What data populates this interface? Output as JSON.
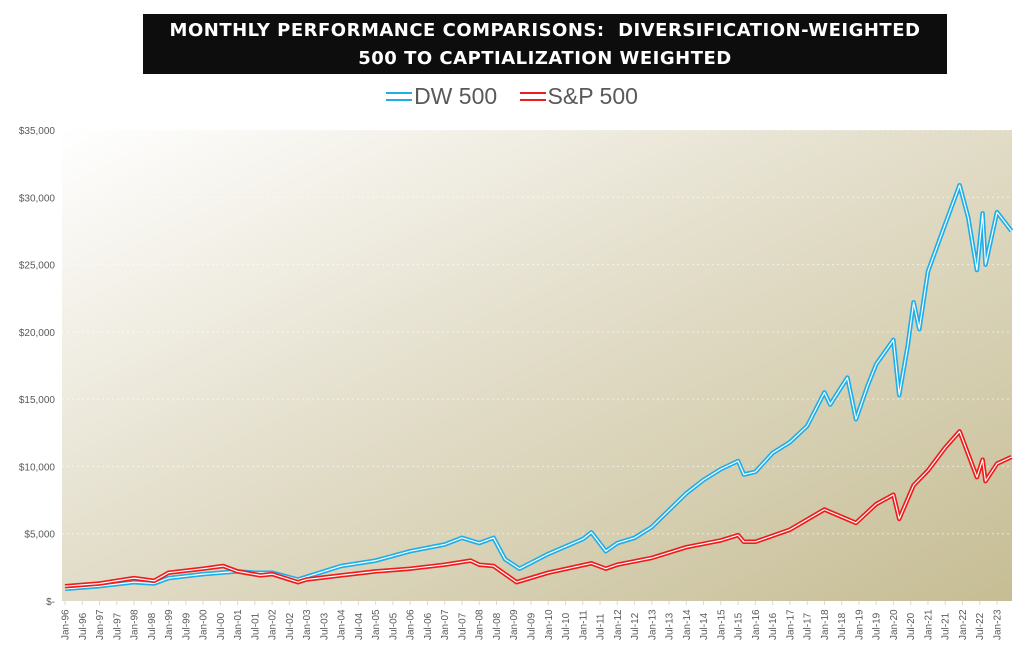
{
  "chart_data": {
    "type": "line",
    "title": [
      "MONTHLY PERFORMANCE COMPARISONS:  DIVERSIFICATION-WEIGHTED",
      "500 TO CAPTIALIZATION WEIGHTED"
    ],
    "xlabel": "",
    "ylabel": "",
    "ylim": [
      0,
      35000
    ],
    "yticks": [
      0,
      5000,
      10000,
      15000,
      20000,
      25000,
      30000,
      35000
    ],
    "ytick_labels": [
      "$-",
      "$5,000",
      "$10,000",
      "$15,000",
      "$20,000",
      "$25,000",
      "$30,000",
      "$35,000"
    ],
    "xtick_labels": [
      "Jan-96",
      "Jul-96",
      "Jan-97",
      "Jul-97",
      "Jan-98",
      "Jul-98",
      "Jan-99",
      "Jul-99",
      "Jan-00",
      "Jul-00",
      "Jan-01",
      "Jul-01",
      "Jan-02",
      "Jul-02",
      "Jan-03",
      "Jul-03",
      "Jan-04",
      "Jul-04",
      "Jan-05",
      "Jul-05",
      "Jan-06",
      "Jul-06",
      "Jan-07",
      "Jul-07",
      "Jan-08",
      "Jul-08",
      "Jan-09",
      "Jul-09",
      "Jan-10",
      "Jul-10",
      "Jan-11",
      "Jul-11",
      "Jan-12",
      "Jul-12",
      "Jan-13",
      "Jul-13",
      "Jan-14",
      "Jul-14",
      "Jan-15",
      "Jul-15",
      "Jan-16",
      "Jul-16",
      "Jan-17",
      "Jul-17",
      "Jan-18",
      "Jul-18",
      "Jan-19",
      "Jul-19",
      "Jan-20",
      "Jul-20",
      "Jan-21",
      "Jul-21",
      "Jan-22",
      "Jul-22",
      "Jan-23"
    ],
    "grid": true,
    "legend_position": "top",
    "series": [
      {
        "name": "DW 500",
        "color": "#1eaee8",
        "points": [
          [
            "1996-01",
            900
          ],
          [
            "1997-01",
            1100
          ],
          [
            "1998-01",
            1400
          ],
          [
            "1998-08",
            1300
          ],
          [
            "1999-01",
            1700
          ],
          [
            "2000-01",
            2000
          ],
          [
            "2001-01",
            2200
          ],
          [
            "2001-07",
            2100
          ],
          [
            "2002-01",
            2100
          ],
          [
            "2002-10",
            1600
          ],
          [
            "2003-01",
            1800
          ],
          [
            "2004-01",
            2600
          ],
          [
            "2005-01",
            3000
          ],
          [
            "2006-01",
            3700
          ],
          [
            "2007-01",
            4200
          ],
          [
            "2007-07",
            4700
          ],
          [
            "2008-01",
            4300
          ],
          [
            "2008-06",
            4700
          ],
          [
            "2008-10",
            3100
          ],
          [
            "2009-03",
            2400
          ],
          [
            "2010-01",
            3500
          ],
          [
            "2011-01",
            4600
          ],
          [
            "2011-04",
            5100
          ],
          [
            "2011-09",
            3700
          ],
          [
            "2012-01",
            4300
          ],
          [
            "2012-07",
            4700
          ],
          [
            "2013-01",
            5500
          ],
          [
            "2014-01",
            8000
          ],
          [
            "2014-07",
            9000
          ],
          [
            "2015-01",
            9800
          ],
          [
            "2015-07",
            10400
          ],
          [
            "2015-09",
            9400
          ],
          [
            "2016-01",
            9600
          ],
          [
            "2016-07",
            11000
          ],
          [
            "2017-01",
            11800
          ],
          [
            "2017-07",
            13000
          ],
          [
            "2018-01",
            15500
          ],
          [
            "2018-03",
            14600
          ],
          [
            "2018-09",
            16600
          ],
          [
            "2018-12",
            13500
          ],
          [
            "2019-04",
            16000
          ],
          [
            "2019-07",
            17600
          ],
          [
            "2020-01",
            19400
          ],
          [
            "2020-03",
            15300
          ],
          [
            "2020-06",
            19000
          ],
          [
            "2020-08",
            22200
          ],
          [
            "2020-10",
            20200
          ],
          [
            "2021-01",
            24500
          ],
          [
            "2021-07",
            28000
          ],
          [
            "2021-12",
            30900
          ],
          [
            "2022-03",
            28500
          ],
          [
            "2022-06",
            24600
          ],
          [
            "2022-08",
            28800
          ],
          [
            "2022-09",
            25000
          ],
          [
            "2023-01",
            28900
          ],
          [
            "2023-06",
            27500
          ]
        ]
      },
      {
        "name": "S&P 500",
        "color": "#ee1c1c",
        "points": [
          [
            "1996-01",
            1100
          ],
          [
            "1997-01",
            1300
          ],
          [
            "1998-01",
            1700
          ],
          [
            "1998-08",
            1500
          ],
          [
            "1999-01",
            2100
          ],
          [
            "2000-01",
            2400
          ],
          [
            "2000-08",
            2600
          ],
          [
            "2001-01",
            2200
          ],
          [
            "2001-09",
            1900
          ],
          [
            "2002-01",
            2000
          ],
          [
            "2002-10",
            1400
          ],
          [
            "2003-01",
            1600
          ],
          [
            "2004-01",
            1900
          ],
          [
            "2005-01",
            2200
          ],
          [
            "2006-01",
            2400
          ],
          [
            "2007-01",
            2700
          ],
          [
            "2007-10",
            3000
          ],
          [
            "2008-01",
            2700
          ],
          [
            "2008-06",
            2600
          ],
          [
            "2009-02",
            1400
          ],
          [
            "2010-01",
            2100
          ],
          [
            "2011-04",
            2800
          ],
          [
            "2011-09",
            2400
          ],
          [
            "2012-01",
            2700
          ],
          [
            "2013-01",
            3200
          ],
          [
            "2014-01",
            4000
          ],
          [
            "2015-01",
            4500
          ],
          [
            "2015-07",
            4900
          ],
          [
            "2015-09",
            4400
          ],
          [
            "2016-01",
            4400
          ],
          [
            "2017-01",
            5300
          ],
          [
            "2018-01",
            6800
          ],
          [
            "2018-12",
            5800
          ],
          [
            "2019-07",
            7200
          ],
          [
            "2020-01",
            7900
          ],
          [
            "2020-03",
            6100
          ],
          [
            "2020-08",
            8600
          ],
          [
            "2021-01",
            9700
          ],
          [
            "2021-07",
            11400
          ],
          [
            "2021-12",
            12600
          ],
          [
            "2022-06",
            9200
          ],
          [
            "2022-08",
            10500
          ],
          [
            "2022-09",
            8900
          ],
          [
            "2023-01",
            10200
          ],
          [
            "2023-06",
            10700
          ]
        ]
      }
    ]
  }
}
